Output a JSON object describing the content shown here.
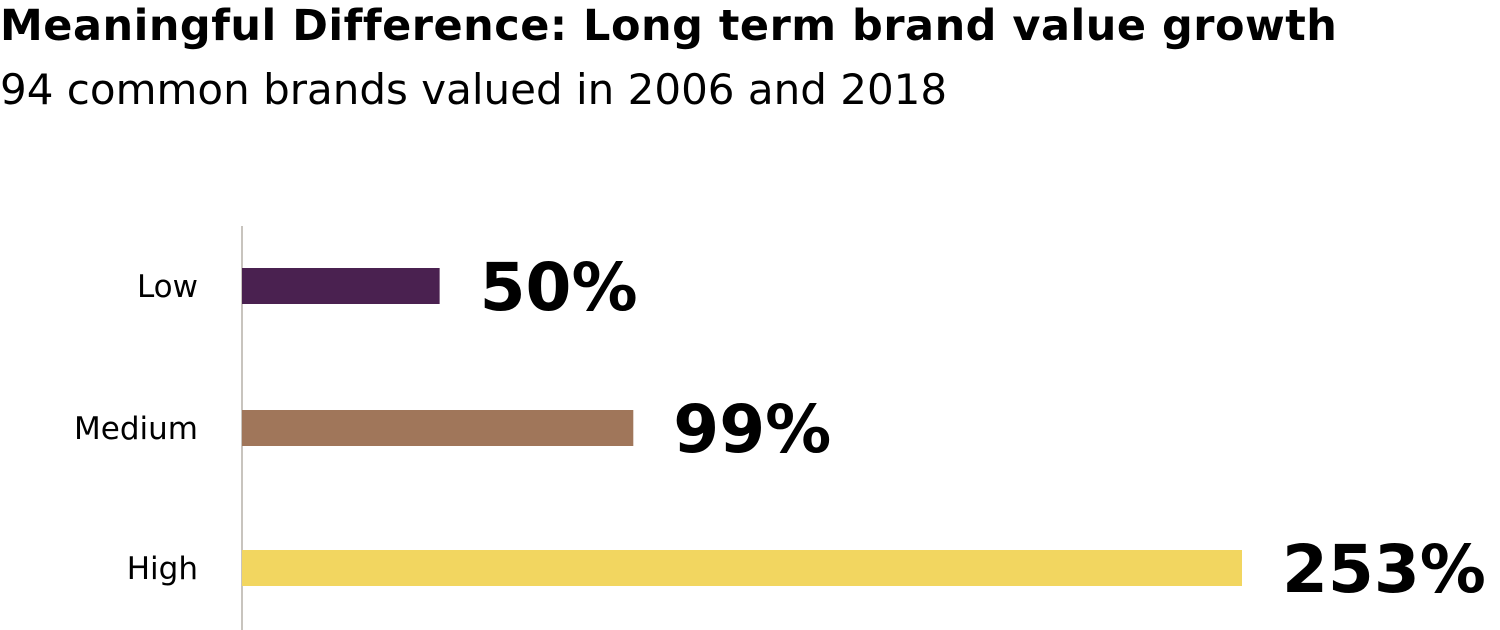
{
  "chart_data": {
    "type": "bar",
    "orientation": "horizontal",
    "title": "Meaningful Difference: Long term brand value growth",
    "subtitle": "94 common brands valued in 2006 and 2018",
    "categories": [
      "Low",
      "Medium",
      "High"
    ],
    "values": [
      50,
      99,
      253
    ],
    "data_labels": [
      "50%",
      "99%",
      "253%"
    ],
    "colors": [
      "#4a2150",
      "#a0765a",
      "#f2d660"
    ],
    "xlim": [
      0,
      253
    ],
    "grid": false,
    "legend": "none"
  }
}
